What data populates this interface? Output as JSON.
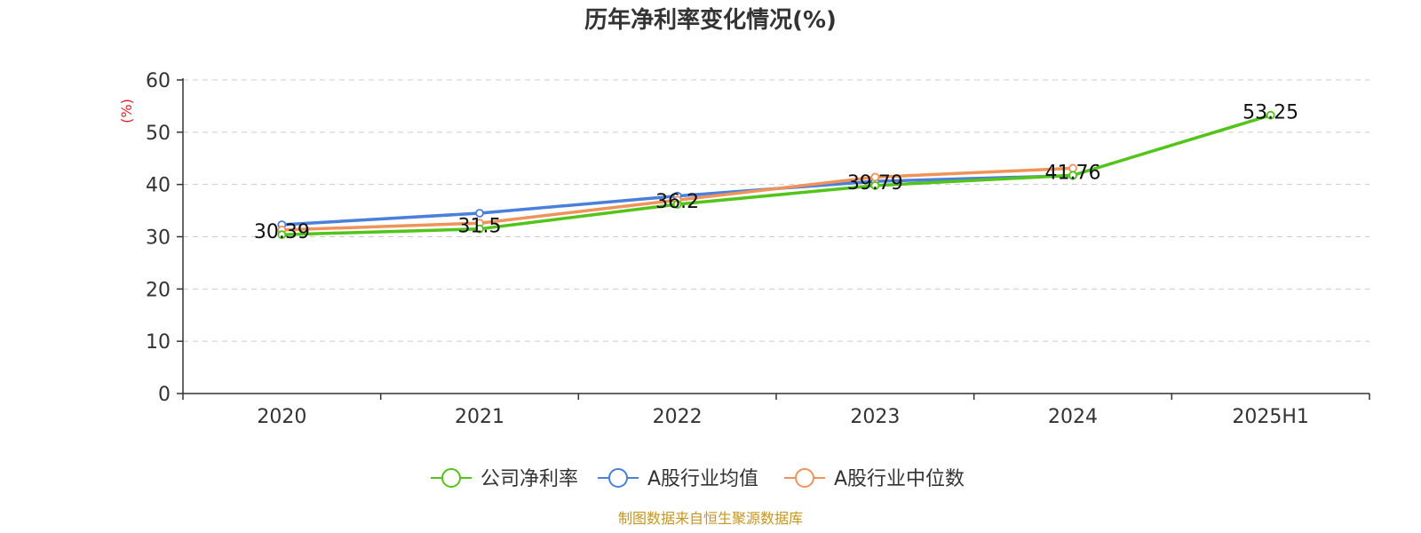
{
  "chart_data": {
    "type": "line",
    "title": "历年净利率变化情况(%)",
    "ylabel": "(%)",
    "xlabel": "",
    "categories": [
      "2020",
      "2021",
      "2022",
      "2023",
      "2024",
      "2025H1"
    ],
    "ylim": [
      0,
      60
    ],
    "yticks": [
      0,
      10,
      20,
      30,
      40,
      50,
      60
    ],
    "grid": "horizontal-dashed",
    "legend_position": "bottom",
    "series": [
      {
        "name": "公司净利率",
        "color": "#52c41a",
        "values": [
          30.39,
          31.5,
          36.2,
          39.79,
          41.76,
          53.25
        ],
        "labels": [
          "30.39",
          "31.5",
          "36.2",
          "39.79",
          "41.76",
          "53.25"
        ]
      },
      {
        "name": "A股行业均值",
        "color": "#4a7fdc",
        "values": [
          32.3,
          34.5,
          37.8,
          40.6,
          41.7,
          null
        ]
      },
      {
        "name": "A股行业中位数",
        "color": "#f0935a",
        "values": [
          31.3,
          32.6,
          37.0,
          41.4,
          43.1,
          null
        ]
      }
    ]
  },
  "source_text": "制图数据来自恒生聚源数据库",
  "colors": {
    "source": "#c8951e",
    "ylabel": "#e02020",
    "axis": "#333333",
    "grid": "#cccccc"
  }
}
